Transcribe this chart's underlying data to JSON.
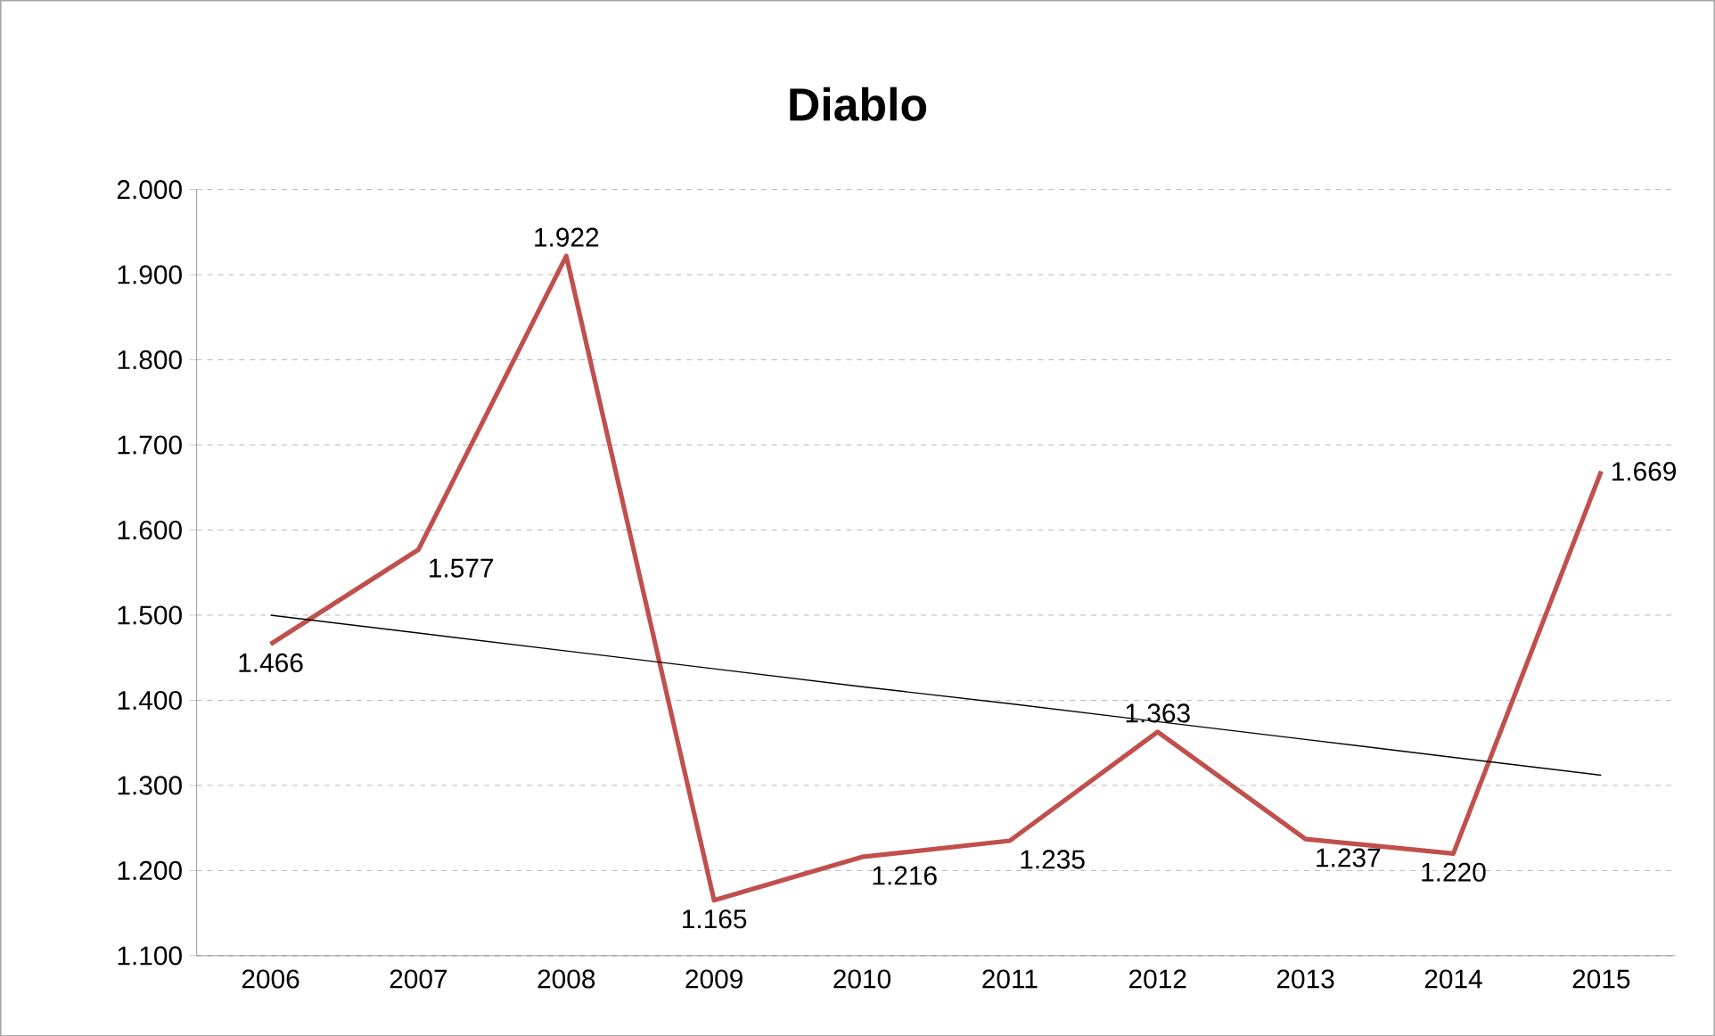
{
  "chart_data": {
    "type": "line",
    "title": "Diablo",
    "categories": [
      "2006",
      "2007",
      "2008",
      "2009",
      "2010",
      "2011",
      "2012",
      "2013",
      "2014",
      "2015"
    ],
    "series": [
      {
        "color": "#c0504d",
        "values": [
          1.466,
          1.577,
          1.922,
          1.165,
          1.216,
          1.235,
          1.363,
          1.237,
          1.22,
          1.669
        ],
        "value_labels": [
          "1.466",
          "1.577",
          "1.922",
          "1.165",
          "1.216",
          "1.235",
          "1.363",
          "1.237",
          "1.220",
          "1.669"
        ]
      },
      {
        "type": "line",
        "color": "#000000",
        "values": [
          1.5,
          1.479,
          1.458,
          1.437,
          1.416,
          1.396,
          1.375,
          1.354,
          1.333,
          1.312
        ]
      }
    ],
    "ylim": [
      1.1,
      2.0
    ],
    "yticks": [
      {
        "value": 1.1,
        "label": "1.100"
      },
      {
        "value": 1.2,
        "label": "1.200"
      },
      {
        "value": 1.3,
        "label": "1.300"
      },
      {
        "value": 1.4,
        "label": "1.400"
      },
      {
        "value": 1.5,
        "label": "1.500"
      },
      {
        "value": 1.6,
        "label": "1.600"
      },
      {
        "value": 1.7,
        "label": "1.700"
      },
      {
        "value": 1.8,
        "label": "1.800"
      },
      {
        "value": 1.9,
        "label": "1.900"
      },
      {
        "value": 2.0,
        "label": "2.000"
      }
    ],
    "grid": "y",
    "marker": "none",
    "line_style": "solid"
  }
}
